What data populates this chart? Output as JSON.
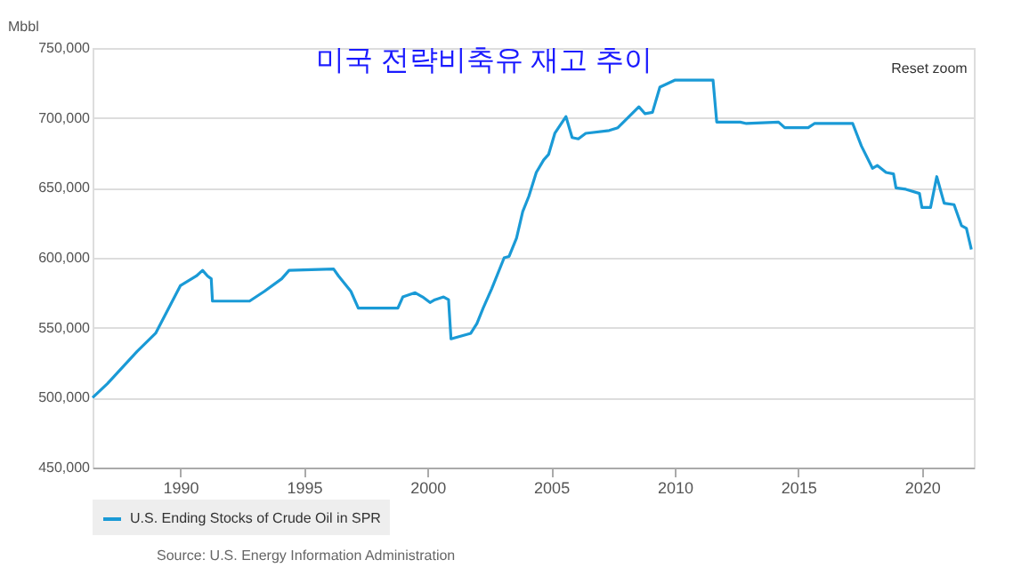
{
  "chart_data": {
    "type": "line",
    "title": "미국 전략비축유 재고 추이",
    "ylabel": "Mbbl",
    "x": [
      1986.45,
      1987.05,
      1988.25,
      1989.0,
      1990.0,
      1990.65,
      1990.9,
      1991.1,
      1991.25,
      1991.3,
      1992.8,
      1993.4,
      1994.1,
      1994.4,
      1996.2,
      1996.4,
      1996.9,
      1997.2,
      1998.8,
      1999.0,
      1999.5,
      1999.8,
      2000.1,
      2000.3,
      2000.65,
      2000.85,
      2000.95,
      2001.75,
      2002.0,
      2002.25,
      2002.6,
      2003.1,
      2003.3,
      2003.6,
      2003.85,
      2004.1,
      2004.4,
      2004.7,
      2004.9,
      2005.15,
      2005.6,
      2005.85,
      2006.1,
      2006.4,
      2007.35,
      2007.7,
      2008.55,
      2008.8,
      2009.1,
      2009.4,
      2010.0,
      2011.55,
      2011.7,
      2012.65,
      2012.9,
      2014.2,
      2014.45,
      2015.4,
      2015.65,
      2017.2,
      2017.55,
      2018.0,
      2018.2,
      2018.55,
      2018.85,
      2018.95,
      2019.35,
      2019.9,
      2020.0,
      2020.35,
      2020.6,
      2020.9,
      2021.3,
      2021.6,
      2021.8,
      2022.0
    ],
    "series": [
      {
        "name": "U.S. Ending Stocks of Crude Oil in SPR",
        "color": "#1a9ad6",
        "values": [
          500000,
          510000,
          533000,
          546000,
          580000,
          587000,
          591000,
          587000,
          585000,
          569000,
          569000,
          576000,
          585000,
          591000,
          592000,
          587000,
          576000,
          564000,
          564000,
          572000,
          575000,
          572000,
          568000,
          570000,
          572000,
          570000,
          542000,
          546000,
          553000,
          564000,
          578000,
          600000,
          601000,
          614000,
          633000,
          644000,
          661000,
          670000,
          674000,
          689000,
          701000,
          686000,
          685000,
          689000,
          691000,
          693000,
          708000,
          703000,
          704000,
          722000,
          727000,
          727000,
          697000,
          697000,
          696000,
          697000,
          693000,
          693000,
          696000,
          696000,
          680000,
          664000,
          666000,
          661000,
          660000,
          650000,
          649000,
          646000,
          636000,
          636000,
          658000,
          639000,
          638000,
          623000,
          621000,
          606000
        ]
      }
    ],
    "xlim": [
      1986.45,
      2022.1
    ],
    "xticks": [
      1990,
      1995,
      2000,
      2005,
      2010,
      2015,
      2020
    ],
    "ylim": [
      450000,
      750000
    ],
    "yticks": [
      {
        "value": 450000,
        "label": "450,000"
      },
      {
        "value": 500000,
        "label": "500,000"
      },
      {
        "value": 550000,
        "label": "550,000"
      },
      {
        "value": 600000,
        "label": "600,000"
      },
      {
        "value": 650000,
        "label": "650,000"
      },
      {
        "value": 700000,
        "label": "700,000"
      },
      {
        "value": 750000,
        "label": "750,000"
      }
    ],
    "grid": "y",
    "legend": "bottom",
    "marker": "none",
    "line_style": "solid",
    "annotations": [
      "Reset zoom",
      "Source: U.S. Energy Information Administration"
    ]
  }
}
